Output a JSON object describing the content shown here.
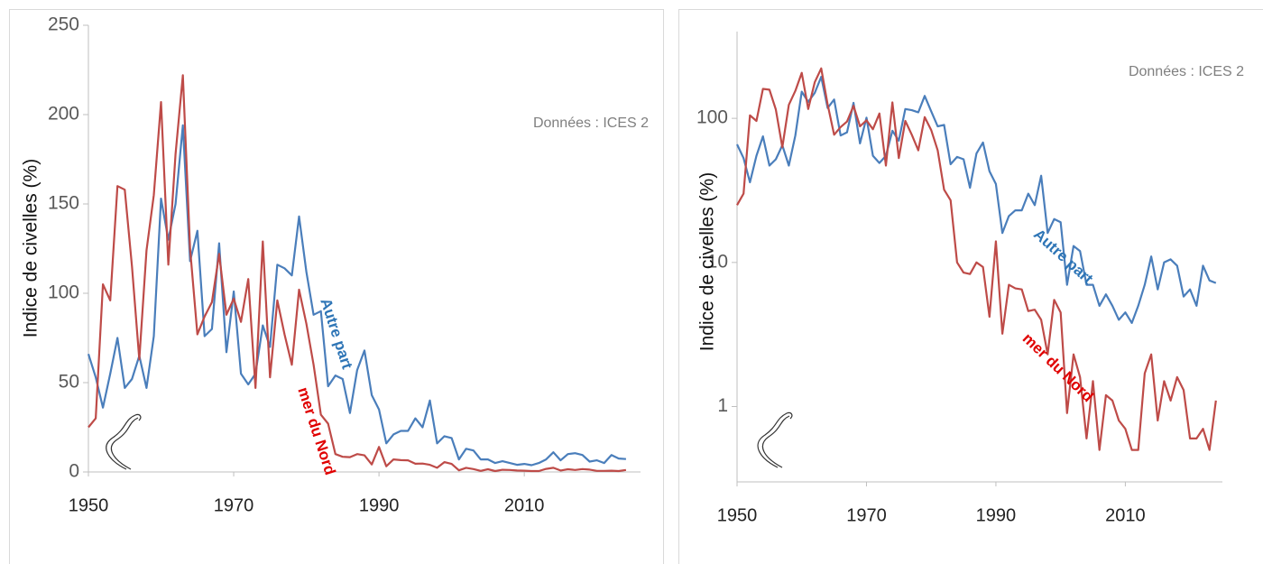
{
  "chart_data": [
    {
      "type": "line",
      "y_label": "Indice de civelles (%)",
      "annotation": "Données : ICES 2",
      "x": [
        1950,
        1951,
        1952,
        1953,
        1954,
        1955,
        1956,
        1957,
        1958,
        1959,
        1960,
        1961,
        1962,
        1963,
        1964,
        1965,
        1966,
        1967,
        1968,
        1969,
        1970,
        1971,
        1972,
        1973,
        1974,
        1975,
        1976,
        1977,
        1978,
        1979,
        1980,
        1981,
        1982,
        1983,
        1984,
        1985,
        1986,
        1987,
        1988,
        1989,
        1990,
        1991,
        1992,
        1993,
        1994,
        1995,
        1996,
        1997,
        1998,
        1999,
        2000,
        2001,
        2002,
        2003,
        2004,
        2005,
        2006,
        2007,
        2008,
        2009,
        2010,
        2011,
        2012,
        2013,
        2014,
        2015,
        2016,
        2017,
        2018,
        2019,
        2020,
        2021,
        2022,
        2023,
        2024
      ],
      "series": [
        {
          "name": "Autre part",
          "color": "#4a7ebb",
          "label_color": "#2e75b6",
          "values": [
            66,
            53,
            36,
            55,
            75,
            47,
            52,
            65,
            47,
            76,
            153,
            130,
            150,
            194,
            118,
            135,
            76,
            80,
            128,
            67,
            101,
            55,
            49,
            55,
            82,
            70,
            116,
            114,
            110,
            143,
            112,
            88,
            90,
            48,
            54,
            52,
            33,
            57,
            68,
            43,
            35,
            16,
            21,
            23,
            23,
            30,
            25,
            40,
            16,
            20,
            19,
            7,
            13,
            12,
            7,
            7,
            5,
            6,
            5,
            4,
            4.5,
            3.8,
            5,
            7,
            11,
            6.5,
            10,
            10.5,
            9.5,
            5.8,
            6.5,
            5,
            9.5,
            7.5,
            7.2
          ]
        },
        {
          "name": "mer du Nord",
          "color": "#be4b48",
          "label_color": "#e00000",
          "values": [
            25,
            30,
            105,
            96,
            160,
            158,
            115,
            63,
            124,
            155,
            207,
            116,
            178,
            222,
            125,
            77,
            87,
            95,
            122,
            88,
            97,
            84,
            108,
            47,
            129,
            53,
            96,
            77,
            60,
            102,
            83,
            60,
            32,
            27,
            10,
            8.5,
            8.3,
            10,
            9.3,
            4.2,
            14,
            3.2,
            7,
            6.6,
            6.5,
            4.6,
            4.7,
            4,
            2.3,
            5.5,
            4.5,
            0.9,
            2.3,
            1.6,
            0.6,
            1.5,
            0.5,
            1.2,
            1.1,
            0.8,
            0.7,
            0.5,
            0.5,
            1.7,
            2.3,
            0.8,
            1.5,
            1.1,
            1.6,
            1.3,
            0.6,
            0.6,
            0.7,
            0.5,
            1.1
          ]
        }
      ],
      "xlim": [
        1950,
        2026
      ],
      "xticks": [
        1950,
        1970,
        1990,
        2010
      ],
      "ylim": [
        0,
        250
      ],
      "yticks": [
        0,
        50,
        100,
        150,
        200,
        250
      ],
      "log_y": false
    },
    {
      "type": "line",
      "y_label": "Indice de civelles (%)",
      "annotation": "Données : ICES 2",
      "x": [
        1950,
        1951,
        1952,
        1953,
        1954,
        1955,
        1956,
        1957,
        1958,
        1959,
        1960,
        1961,
        1962,
        1963,
        1964,
        1965,
        1966,
        1967,
        1968,
        1969,
        1970,
        1971,
        1972,
        1973,
        1974,
        1975,
        1976,
        1977,
        1978,
        1979,
        1980,
        1981,
        1982,
        1983,
        1984,
        1985,
        1986,
        1987,
        1988,
        1989,
        1990,
        1991,
        1992,
        1993,
        1994,
        1995,
        1996,
        1997,
        1998,
        1999,
        2000,
        2001,
        2002,
        2003,
        2004,
        2005,
        2006,
        2007,
        2008,
        2009,
        2010,
        2011,
        2012,
        2013,
        2014,
        2015,
        2016,
        2017,
        2018,
        2019,
        2020,
        2021,
        2022,
        2023,
        2024
      ],
      "series": [
        {
          "name": "Autre part",
          "color": "#4a7ebb",
          "label_color": "#2e75b6",
          "values": [
            66,
            53,
            36,
            55,
            75,
            47,
            52,
            65,
            47,
            76,
            153,
            130,
            150,
            194,
            118,
            135,
            76,
            80,
            128,
            67,
            101,
            55,
            49,
            55,
            82,
            70,
            116,
            114,
            110,
            143,
            112,
            88,
            90,
            48,
            54,
            52,
            33,
            57,
            68,
            43,
            35,
            16,
            21,
            23,
            23,
            30,
            25,
            40,
            16,
            20,
            19,
            7,
            13,
            12,
            7,
            7,
            5,
            6,
            5,
            4,
            4.5,
            3.8,
            5,
            7,
            11,
            6.5,
            10,
            10.5,
            9.5,
            5.8,
            6.5,
            5,
            9.5,
            7.5,
            7.2
          ]
        },
        {
          "name": "mer du Nord",
          "color": "#be4b48",
          "label_color": "#e00000",
          "values": [
            25,
            30,
            105,
            96,
            160,
            158,
            115,
            63,
            124,
            155,
            207,
            116,
            178,
            222,
            125,
            77,
            87,
            95,
            122,
            88,
            97,
            84,
            108,
            47,
            129,
            53,
            96,
            77,
            60,
            102,
            83,
            60,
            32,
            27,
            10,
            8.5,
            8.3,
            10,
            9.3,
            4.2,
            14,
            3.2,
            7,
            6.6,
            6.5,
            4.6,
            4.7,
            4,
            2.3,
            5.5,
            4.5,
            0.9,
            2.3,
            1.6,
            0.6,
            1.5,
            0.5,
            1.2,
            1.1,
            0.8,
            0.7,
            0.5,
            0.5,
            1.7,
            2.3,
            0.8,
            1.5,
            1.1,
            1.6,
            1.3,
            0.6,
            0.6,
            0.7,
            0.5,
            1.1
          ]
        }
      ],
      "xlim": [
        1950,
        2025
      ],
      "xticks": [
        1950,
        1970,
        1990,
        2010
      ],
      "ylim": [
        0.3,
        400
      ],
      "yticks": [
        1,
        10,
        100
      ],
      "log_y": true
    }
  ]
}
